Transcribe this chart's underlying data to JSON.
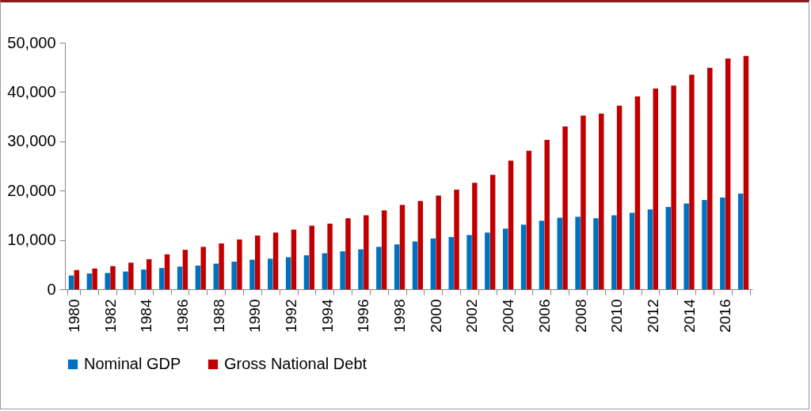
{
  "chart_data": {
    "type": "bar",
    "categories": [
      "1980",
      null,
      "1982",
      null,
      "1984",
      null,
      "1986",
      null,
      "1988",
      null,
      "1990",
      null,
      "1992",
      null,
      "1994",
      null,
      "1996",
      null,
      "1998",
      null,
      "2000",
      null,
      "2002",
      null,
      "2004",
      null,
      "2006",
      null,
      "2008",
      null,
      "2010",
      null,
      "2012",
      null,
      "2014",
      null,
      "2016",
      null
    ],
    "series": [
      {
        "name": "Nominal GDP",
        "color": "#0070c0",
        "values": [
          2800,
          3200,
          3300,
          3600,
          4000,
          4300,
          4600,
          4800,
          5200,
          5600,
          6000,
          6200,
          6500,
          6900,
          7300,
          7700,
          8100,
          8600,
          9100,
          9700,
          10300,
          10600,
          11000,
          11500,
          12300,
          13100,
          13900,
          14500,
          14700,
          14400,
          15000,
          15500,
          16200,
          16700,
          17400,
          18100,
          18600,
          19400
        ]
      },
      {
        "name": "Gross National Debt",
        "color": "#c00000",
        "values": [
          3900,
          4200,
          4700,
          5400,
          6100,
          7100,
          8000,
          8600,
          9300,
          10100,
          10900,
          11500,
          12100,
          12900,
          13300,
          14400,
          15000,
          16000,
          17100,
          17900,
          19000,
          20200,
          21600,
          23200,
          26100,
          28100,
          30300,
          33000,
          35200,
          35600,
          37200,
          39100,
          40700,
          41300,
          43500,
          44900,
          46800,
          47300
        ]
      }
    ],
    "ylim": [
      0,
      50000
    ],
    "yticks": [
      0,
      {
        "value": 10000,
        "label": "10,000"
      },
      {
        "value": 20000,
        "label": "20,000"
      },
      {
        "value": 30000,
        "label": "30,000"
      },
      {
        "value": 40000,
        "label": "40,000"
      },
      {
        "value": 50000,
        "label": "50,000"
      }
    ],
    "grid": false,
    "legend": "bottom"
  }
}
